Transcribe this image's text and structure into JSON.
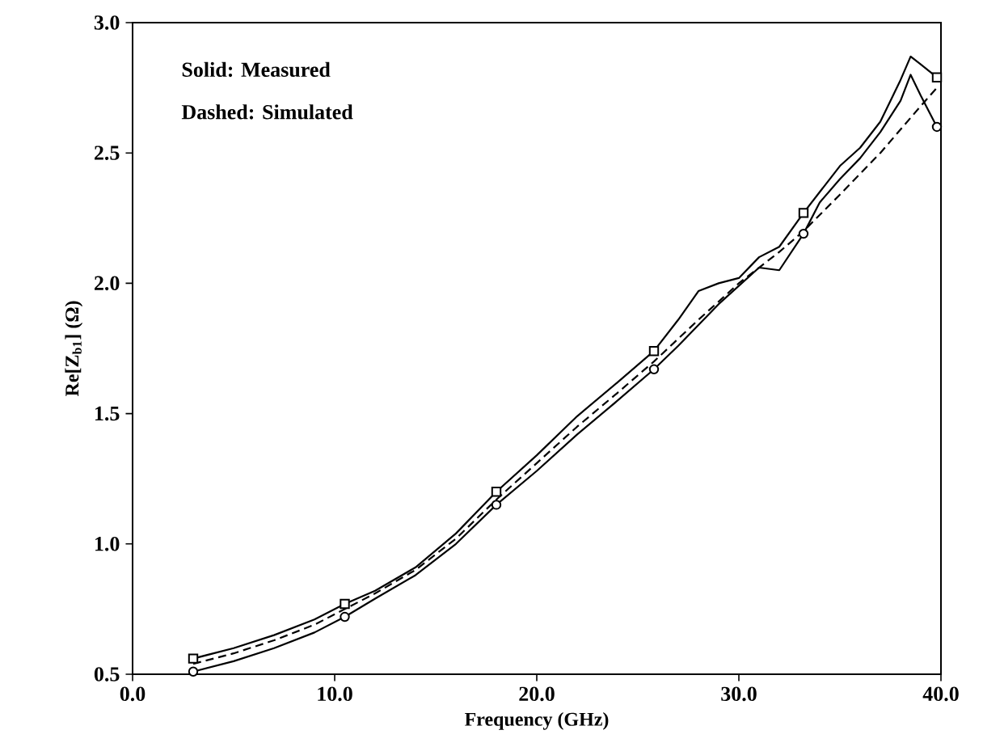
{
  "chart_data": {
    "type": "line",
    "xlabel": "Frequency (GHz)",
    "ylabel": "Re[Z$_{b1}$] (Ω)",
    "annotations": [
      "Solid:   Measured",
      "Dashed: Simulated"
    ],
    "xlim": [
      0,
      40
    ],
    "ylim": [
      0.5,
      3.0
    ],
    "xticks": [
      {
        "value": 0,
        "label": "0.0"
      },
      {
        "value": 10,
        "label": "10.0"
      },
      {
        "value": 20,
        "label": "20.0"
      },
      {
        "value": 30,
        "label": "30.0"
      },
      {
        "value": 40,
        "label": "40.0"
      }
    ],
    "yticks": [
      {
        "value": 0.5,
        "label": "0.5"
      },
      {
        "value": 1,
        "label": "1.0"
      },
      {
        "value": 1.5,
        "label": "1.5"
      },
      {
        "value": 2,
        "label": "2.0"
      },
      {
        "value": 2.5,
        "label": "2.5"
      },
      {
        "value": 3,
        "label": "3.0"
      }
    ],
    "grid": false,
    "series": [
      {
        "line_style": "solid",
        "marker": "none",
        "color": "#000000",
        "x": [
          3,
          5,
          7,
          9,
          10.5,
          12,
          14,
          16,
          18,
          20,
          22,
          24,
          25.8,
          27,
          28,
          29,
          30,
          31,
          32,
          33.2,
          34,
          35,
          36,
          37,
          38,
          38.5,
          39,
          39.8
        ],
        "values": [
          0.56,
          0.6,
          0.65,
          0.71,
          0.77,
          0.82,
          0.91,
          1.04,
          1.2,
          1.34,
          1.49,
          1.62,
          1.74,
          1.86,
          1.97,
          2.0,
          2.02,
          2.1,
          2.14,
          2.27,
          2.35,
          2.45,
          2.52,
          2.62,
          2.78,
          2.87,
          2.84,
          2.79
        ]
      },
      {
        "line_style": "solid",
        "marker": "none",
        "color": "#000000",
        "x": [
          3,
          5,
          7,
          9,
          10.5,
          12,
          14,
          16,
          18,
          20,
          22,
          24,
          25.8,
          27,
          28,
          29,
          30,
          31,
          32,
          33.2,
          34,
          35,
          36,
          37,
          38,
          38.5,
          39,
          39.8
        ],
        "values": [
          0.51,
          0.55,
          0.6,
          0.66,
          0.72,
          0.79,
          0.88,
          1.0,
          1.15,
          1.28,
          1.42,
          1.55,
          1.67,
          1.76,
          1.84,
          1.92,
          1.99,
          2.06,
          2.05,
          2.19,
          2.31,
          2.4,
          2.48,
          2.58,
          2.7,
          2.8,
          2.72,
          2.6
        ]
      },
      {
        "line_style": "dashed",
        "marker": "none",
        "color": "#000000",
        "x": [
          3,
          5,
          7,
          9,
          10.5,
          12,
          14,
          16,
          18,
          20,
          22,
          24,
          25.8,
          28,
          30,
          32,
          33.2,
          35,
          37,
          39,
          39.8
        ],
        "values": [
          0.54,
          0.58,
          0.63,
          0.69,
          0.75,
          0.81,
          0.9,
          1.02,
          1.17,
          1.31,
          1.45,
          1.58,
          1.7,
          1.86,
          2.0,
          2.12,
          2.2,
          2.34,
          2.5,
          2.68,
          2.75
        ]
      },
      {
        "type": "scatter",
        "marker": "square",
        "color": "#000000",
        "x": [
          3,
          10.5,
          18,
          25.8,
          33.2,
          39.8
        ],
        "values": [
          0.56,
          0.77,
          1.2,
          1.74,
          2.27,
          2.79
        ]
      },
      {
        "type": "scatter",
        "marker": "circle",
        "color": "#000000",
        "x": [
          3,
          10.5,
          18,
          25.8,
          33.2,
          39.8
        ],
        "values": [
          0.51,
          0.72,
          1.15,
          1.67,
          2.19,
          2.6
        ]
      }
    ]
  }
}
